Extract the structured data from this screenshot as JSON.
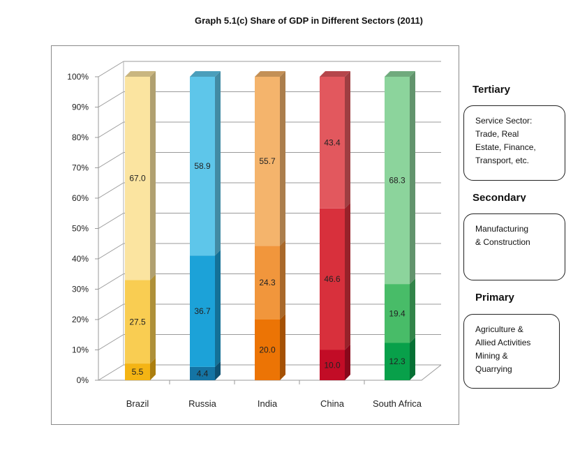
{
  "chart_data": {
    "type": "bar",
    "subtype": "stacked-percent-3d",
    "title": "Graph 5.1(c) Share of GDP in Different Sectors (2011)",
    "categories": [
      "Brazil",
      "Russia",
      "India",
      "China",
      "South Africa"
    ],
    "series": [
      {
        "name": "Primary",
        "values": [
          5.5,
          4.4,
          20.0,
          10.0,
          12.3
        ]
      },
      {
        "name": "Secondary",
        "values": [
          27.5,
          36.7,
          24.3,
          46.6,
          19.4
        ]
      },
      {
        "name": "Tertiary",
        "values": [
          67.0,
          58.9,
          55.7,
          43.4,
          68.3
        ]
      }
    ],
    "labels": {
      "Brazil": [
        "5.5",
        "27.5",
        "67.0"
      ],
      "Russia": [
        "4.4",
        "36.7",
        "58.9"
      ],
      "India": [
        "20.0",
        "24.3",
        "55.7"
      ],
      "China": [
        "10.0",
        "46.6",
        "43.4"
      ],
      "South Africa": [
        "12.3",
        "19.4",
        "68.3"
      ]
    },
    "yticks": [
      "0%",
      "10%",
      "20%",
      "30%",
      "40%",
      "50%",
      "60%",
      "70%",
      "80%",
      "90%",
      "100%"
    ],
    "ylim": [
      0,
      100
    ],
    "grid": true,
    "colors": {
      "Brazil": [
        "#f4b414",
        "#f9cd52",
        "#fbe4a0"
      ],
      "Russia": [
        "#1474a4",
        "#1ca2d8",
        "#5ec6ea"
      ],
      "India": [
        "#ec7405",
        "#f1963c",
        "#f4b46c"
      ],
      "China": [
        "#c20c26",
        "#d8303c",
        "#e2585e"
      ],
      "South Africa": [
        "#08a04a",
        "#48bc68",
        "#8cd49c"
      ]
    }
  },
  "legend": {
    "tertiary": {
      "heading": "Tertiary",
      "lines": [
        "Service Sector:",
        "Trade, Real",
        "Estate, Finance,",
        "Transport, etc."
      ]
    },
    "secondary": {
      "heading": "Secondary",
      "lines": [
        "Manufacturing",
        "& Construction"
      ]
    },
    "primary": {
      "heading": "Primary",
      "lines": [
        "Agriculture &",
        "Allied Activities",
        "Mining &",
        "Quarrying"
      ]
    }
  }
}
